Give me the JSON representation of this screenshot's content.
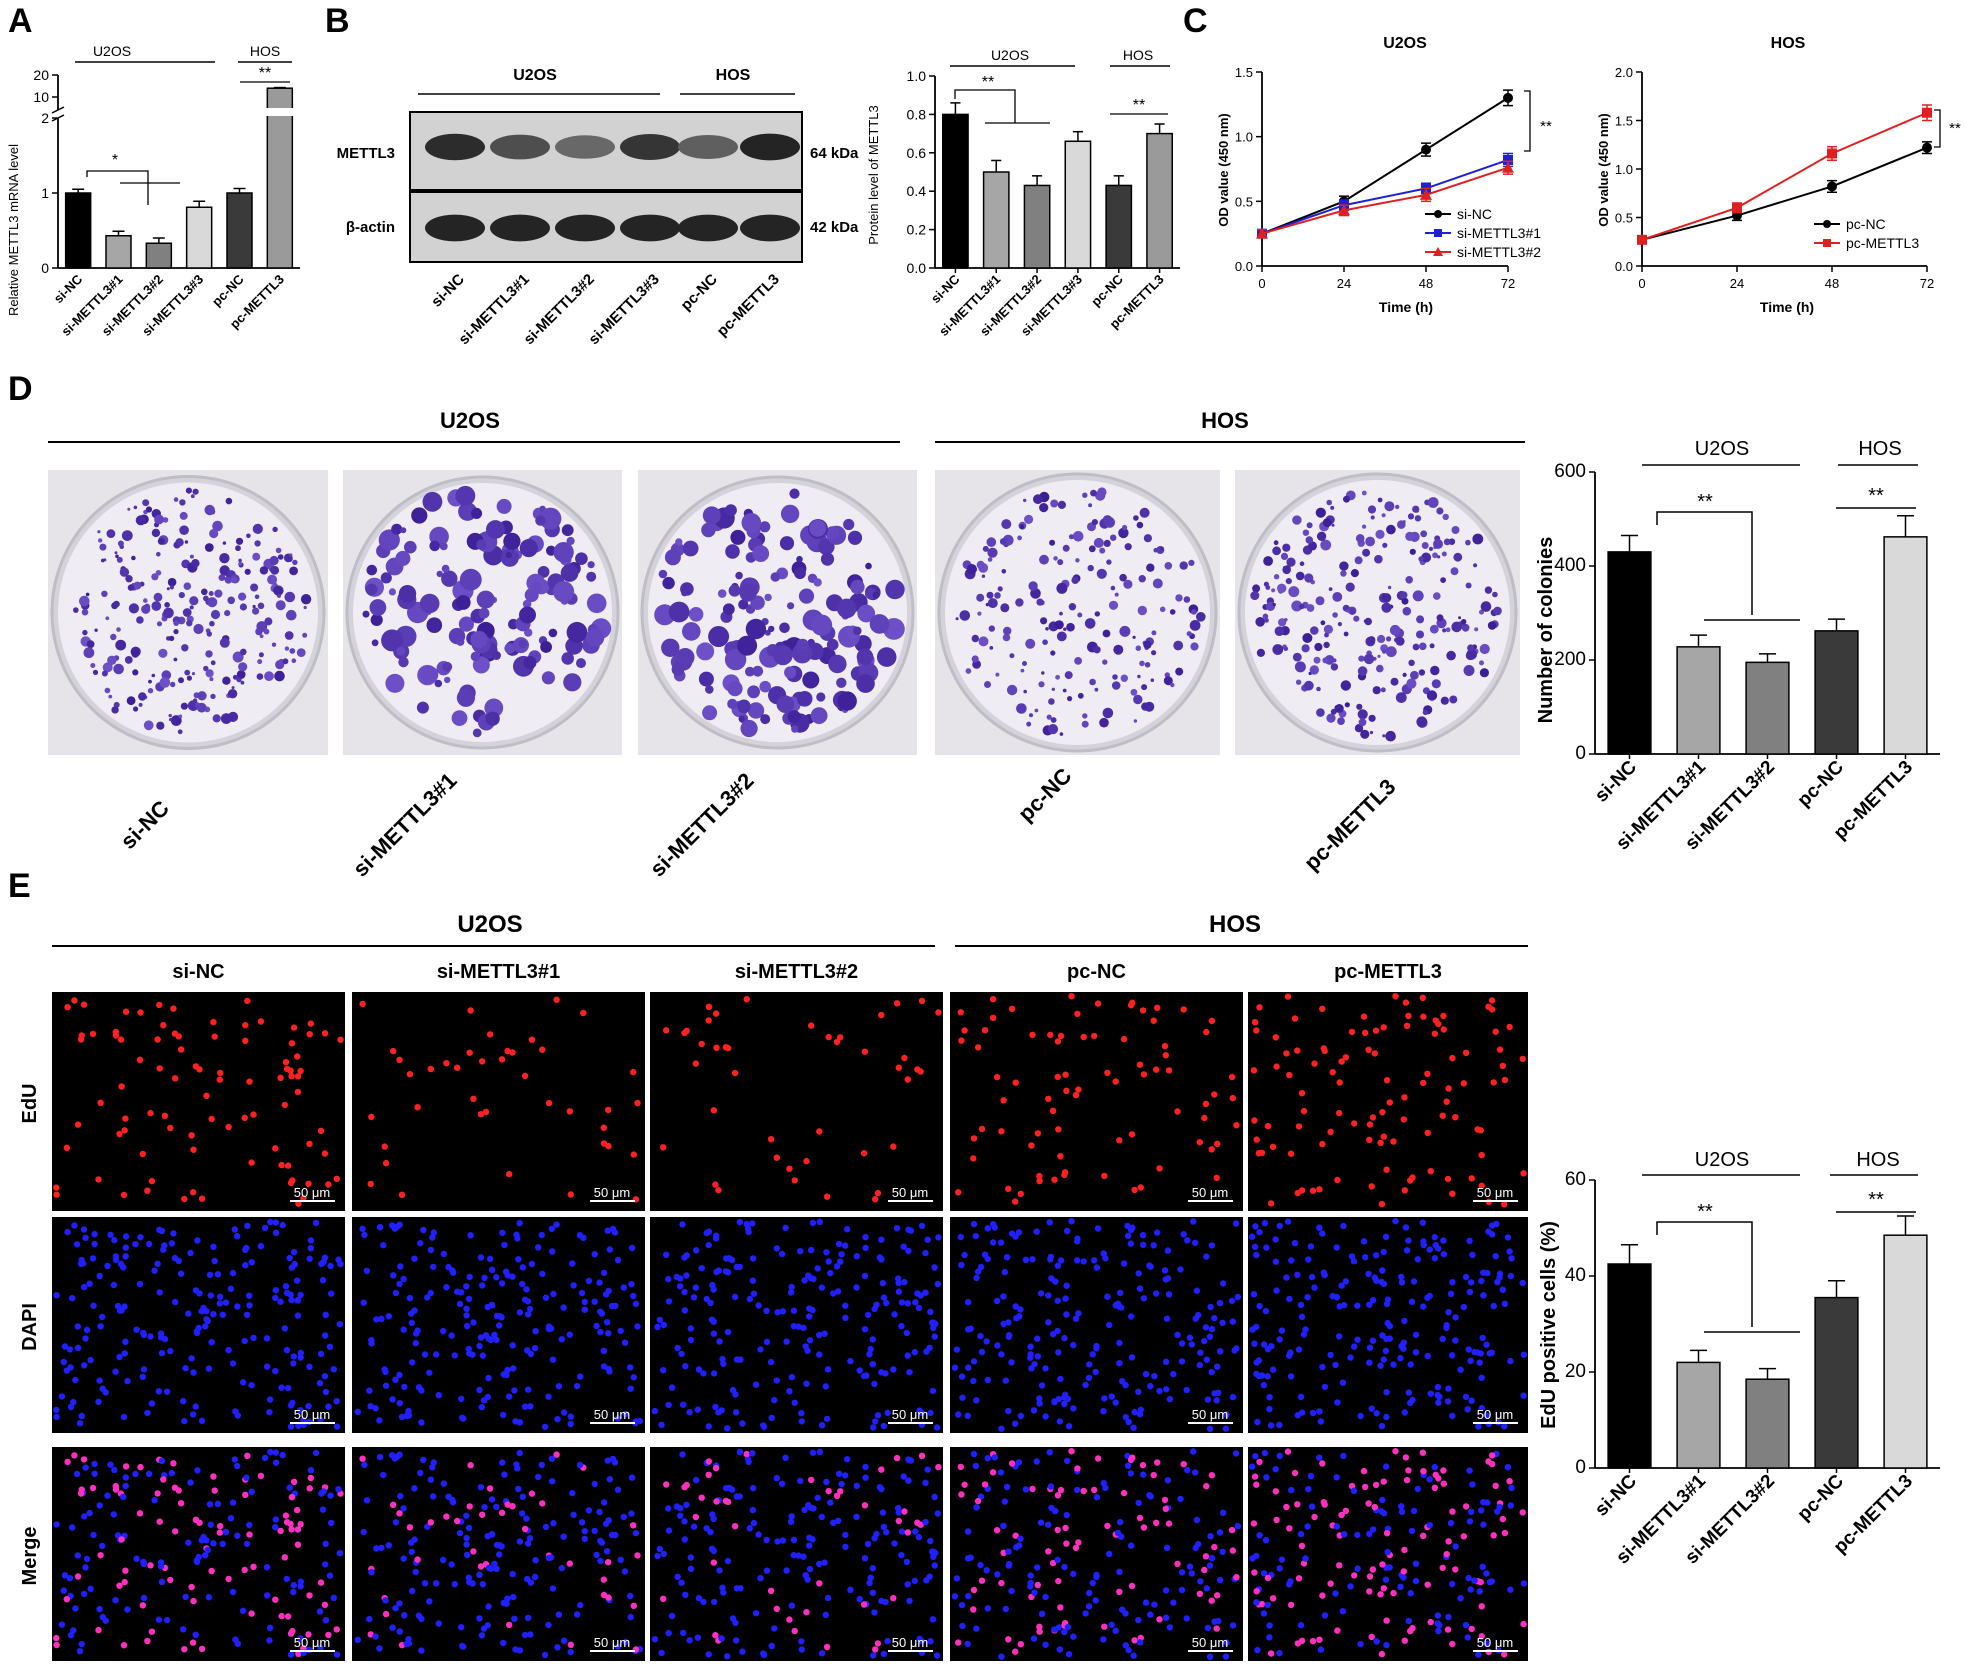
{
  "panels": {
    "A": {
      "letter": "A",
      "groups": [
        "U2OS",
        "HOS"
      ],
      "sig": [
        "*",
        "**"
      ],
      "chart_data": {
        "type": "bar",
        "ylabel": "Relative METTL3 mRNA level",
        "categories": [
          "si-NC",
          "si-METTL3#1",
          "si-METTL3#2",
          "si-METTL3#3",
          "pc-NC",
          "pc-METTL3"
        ],
        "values": [
          1.0,
          0.43,
          0.33,
          0.81,
          1.0,
          14.0
        ],
        "errors": [
          0.05,
          0.06,
          0.07,
          0.08,
          0.06,
          0.3
        ],
        "colors": [
          "#000000",
          "#a6a6a6",
          "#808080",
          "#d9d9d9",
          "#3a3a3a",
          "#9a9a9a"
        ],
        "axis_broken": true,
        "yticks_lower": [
          "0",
          "1",
          "2"
        ],
        "yticks_upper": [
          "10",
          "20"
        ]
      }
    },
    "B": {
      "letter": "B",
      "blot": {
        "groups": [
          "U2OS",
          "HOS"
        ],
        "rows": [
          "METTL3",
          "β-actin"
        ],
        "sizes": [
          "64 kDa",
          "42 kDa"
        ],
        "lanes": [
          "si-NC",
          "si-METTL3#1",
          "si-METTL3#2",
          "si-METTL3#3",
          "pc-NC",
          "pc-METTL3"
        ],
        "mettl3_intensity": [
          0.8,
          0.6,
          0.45,
          0.75,
          0.5,
          0.85
        ],
        "actin_intensity": [
          0.85,
          0.85,
          0.85,
          0.85,
          0.85,
          0.85
        ]
      },
      "groups": [
        "U2OS",
        "HOS"
      ],
      "sig": [
        "**",
        "**"
      ],
      "chart_data": {
        "type": "bar",
        "ylabel": "Protein level of METTL3",
        "categories": [
          "si-NC",
          "si-METTL3#1",
          "si-METTL3#2",
          "si-METTL3#3",
          "pc-NC",
          "pc-METTL3"
        ],
        "values": [
          0.8,
          0.5,
          0.43,
          0.66,
          0.43,
          0.7
        ],
        "errors": [
          0.06,
          0.06,
          0.05,
          0.05,
          0.05,
          0.05
        ],
        "colors": [
          "#000000",
          "#a6a6a6",
          "#808080",
          "#d9d9d9",
          "#3a3a3a",
          "#9a9a9a"
        ],
        "ylim": [
          0,
          1.0
        ],
        "yticks": [
          "0.0",
          "0.2",
          "0.4",
          "0.6",
          "0.8",
          "1.0"
        ]
      }
    },
    "C": {
      "letter": "C",
      "chart_data": [
        {
          "type": "line",
          "title": "U2OS",
          "xlabel": "Time (h)",
          "ylabel": "OD value (450 nm)",
          "x": [
            0,
            24,
            48,
            72
          ],
          "xticks": [
            "0",
            "24",
            "48",
            "72"
          ],
          "yticks": [
            "0.0",
            "0.5",
            "1.0",
            "1.5"
          ],
          "ylim": [
            0,
            1.5
          ],
          "sig": "**",
          "series": [
            {
              "name": "si-NC",
              "values": [
                0.25,
                0.5,
                0.9,
                1.3
              ],
              "errors": [
                0.03,
                0.04,
                0.05,
                0.06
              ],
              "color": "#000000",
              "marker": "circle"
            },
            {
              "name": "si-METTL3#1",
              "values": [
                0.25,
                0.47,
                0.6,
                0.82
              ],
              "errors": [
                0.03,
                0.04,
                0.04,
                0.05
              ],
              "color": "#1f1fd6",
              "marker": "square"
            },
            {
              "name": "si-METTL3#2",
              "values": [
                0.25,
                0.43,
                0.55,
                0.76
              ],
              "errors": [
                0.03,
                0.04,
                0.05,
                0.05
              ],
              "color": "#e02020",
              "marker": "triangle"
            }
          ]
        },
        {
          "type": "line",
          "title": "HOS",
          "xlabel": "Time (h)",
          "ylabel": "OD value (450 nm)",
          "x": [
            0,
            24,
            48,
            72
          ],
          "xticks": [
            "0",
            "24",
            "48",
            "72"
          ],
          "yticks": [
            "0.0",
            "0.5",
            "1.0",
            "1.5",
            "2.0"
          ],
          "ylim": [
            0,
            2.0
          ],
          "sig": "**",
          "series": [
            {
              "name": "pc-NC",
              "values": [
                0.27,
                0.52,
                0.82,
                1.22
              ],
              "errors": [
                0.03,
                0.05,
                0.06,
                0.06
              ],
              "color": "#000000",
              "marker": "circle"
            },
            {
              "name": "pc-METTL3",
              "values": [
                0.27,
                0.6,
                1.16,
                1.58
              ],
              "errors": [
                0.03,
                0.05,
                0.07,
                0.08
              ],
              "color": "#e02020",
              "marker": "square"
            }
          ]
        }
      ]
    },
    "D": {
      "letter": "D",
      "groups": [
        "U2OS",
        "HOS"
      ],
      "plate_labels": [
        "si-NC",
        "si-METTL3#1",
        "si-METTL3#2",
        "pc-NC",
        "pc-METTL3"
      ],
      "plate_density": [
        0.9,
        0.4,
        0.45,
        0.6,
        0.9
      ],
      "chart_groups": [
        "U2OS",
        "HOS"
      ],
      "sig": [
        "**",
        "**"
      ],
      "chart_data": {
        "type": "bar",
        "ylabel": "Number of colonies",
        "categories": [
          "si-NC",
          "si-METTL3#1",
          "si-METTL3#2",
          "pc-NC",
          "pc-METTL3"
        ],
        "values": [
          430,
          228,
          195,
          262,
          462
        ],
        "errors": [
          35,
          25,
          18,
          25,
          45
        ],
        "colors": [
          "#000000",
          "#a6a6a6",
          "#808080",
          "#3a3a3a",
          "#d9d9d9"
        ],
        "ylim": [
          0,
          600
        ],
        "yticks": [
          "0",
          "200",
          "400",
          "600"
        ]
      }
    },
    "E": {
      "letter": "E",
      "groups": [
        "U2OS",
        "HOS"
      ],
      "col_labels": [
        "si-NC",
        "si-METTL3#1",
        "si-METTL3#2",
        "pc-NC",
        "pc-METTL3"
      ],
      "row_labels": [
        "EdU",
        "DAPI",
        "Merge"
      ],
      "scale_bar": "50 μm",
      "edu_density": [
        0.42,
        0.22,
        0.18,
        0.35,
        0.48
      ],
      "channel_colors": {
        "edu": "#ff2020",
        "dapi": "#2020ff",
        "merge": "#ff30c0"
      },
      "chart_groups": [
        "U2OS",
        "HOS"
      ],
      "sig": [
        "**",
        "**"
      ],
      "chart_data": {
        "type": "bar",
        "ylabel": "EdU positive cells (%)",
        "categories": [
          "si-NC",
          "si-METTL3#1",
          "si-METTL3#2",
          "pc-NC",
          "pc-METTL3"
        ],
        "values": [
          42.5,
          22,
          18.5,
          35.5,
          48.5
        ],
        "errors": [
          4,
          2.5,
          2.2,
          3.5,
          4
        ],
        "colors": [
          "#000000",
          "#a6a6a6",
          "#808080",
          "#3a3a3a",
          "#d9d9d9"
        ],
        "ylim": [
          0,
          60
        ],
        "yticks": [
          "0",
          "20",
          "40",
          "60"
        ]
      }
    }
  }
}
